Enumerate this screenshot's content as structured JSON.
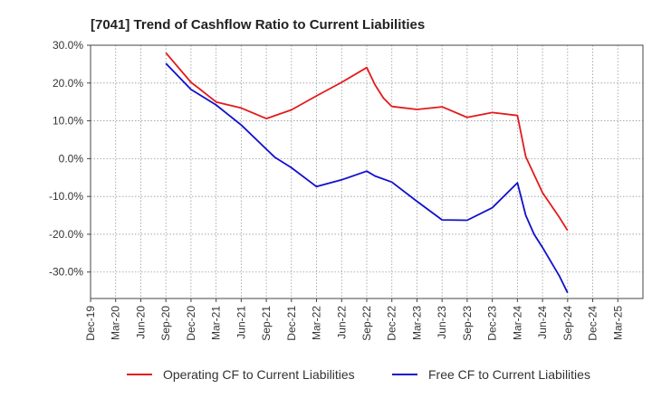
{
  "chart_data": {
    "type": "line",
    "title": "[7041]  Trend of Cashflow Ratio to Current Liabilities",
    "xlabel": "",
    "ylabel": "",
    "ylim": [
      -37,
      30
    ],
    "x_ticks": [
      "Dec-19",
      "Mar-20",
      "Jun-20",
      "Sep-20",
      "Dec-20",
      "Mar-21",
      "Jun-21",
      "Sep-21",
      "Dec-21",
      "Mar-22",
      "Jun-22",
      "Sep-22",
      "Dec-22",
      "Mar-23",
      "Jun-23",
      "Sep-23",
      "Dec-23",
      "Mar-24",
      "Jun-24",
      "Sep-24",
      "Dec-24",
      "Mar-25"
    ],
    "y_ticks": [
      30,
      20,
      10,
      0,
      -10,
      -20,
      -30
    ],
    "y_tick_labels": [
      "30.0%",
      "20.0%",
      "10.0%",
      "0.0%",
      "-10.0%",
      "-20.0%",
      "-30.0%"
    ],
    "grid": true,
    "legend_position": "bottom",
    "series": [
      {
        "name": "Operating CF to Current Liabilities",
        "color": "#e31a1c",
        "x": [
          "Sep-20",
          "Dec-20",
          "Jan-21",
          "Mar-21",
          "Jun-21",
          "Sep-21",
          "Dec-21",
          "Mar-22",
          "Jun-22",
          "Sep-22",
          "Oct-22",
          "Nov-22",
          "Dec-22",
          "Mar-23",
          "Jun-23",
          "Sep-23",
          "Dec-23",
          "Mar-24",
          "Apr-24",
          "Jun-24",
          "Aug-24",
          "Sep-24"
        ],
        "values": [
          28.0,
          20.2,
          18.5,
          15.0,
          13.4,
          10.6,
          12.9,
          16.6,
          20.2,
          24.1,
          19.5,
          16.0,
          13.8,
          13.0,
          13.7,
          10.9,
          12.2,
          11.4,
          0.5,
          -9.0,
          -15.5,
          -19.0
        ]
      },
      {
        "name": "Free CF to Current Liabilities",
        "color": "#1010cc",
        "x": [
          "Sep-20",
          "Dec-20",
          "Mar-21",
          "Jun-21",
          "Sep-21",
          "Oct-21",
          "Dec-21",
          "Mar-22",
          "Jun-22",
          "Sep-22",
          "Oct-22",
          "Dec-22",
          "Mar-23",
          "Jun-23",
          "Sep-23",
          "Dec-23",
          "Mar-24",
          "Apr-24",
          "May-24",
          "Jun-24",
          "Aug-24",
          "Sep-24"
        ],
        "values": [
          25.2,
          18.3,
          14.2,
          8.9,
          2.5,
          0.4,
          -2.4,
          -7.4,
          -5.6,
          -3.3,
          -4.6,
          -6.2,
          -11.3,
          -16.2,
          -16.3,
          -13.0,
          -6.4,
          -15.0,
          -20.0,
          -23.5,
          -31.0,
          -35.5
        ]
      }
    ]
  }
}
